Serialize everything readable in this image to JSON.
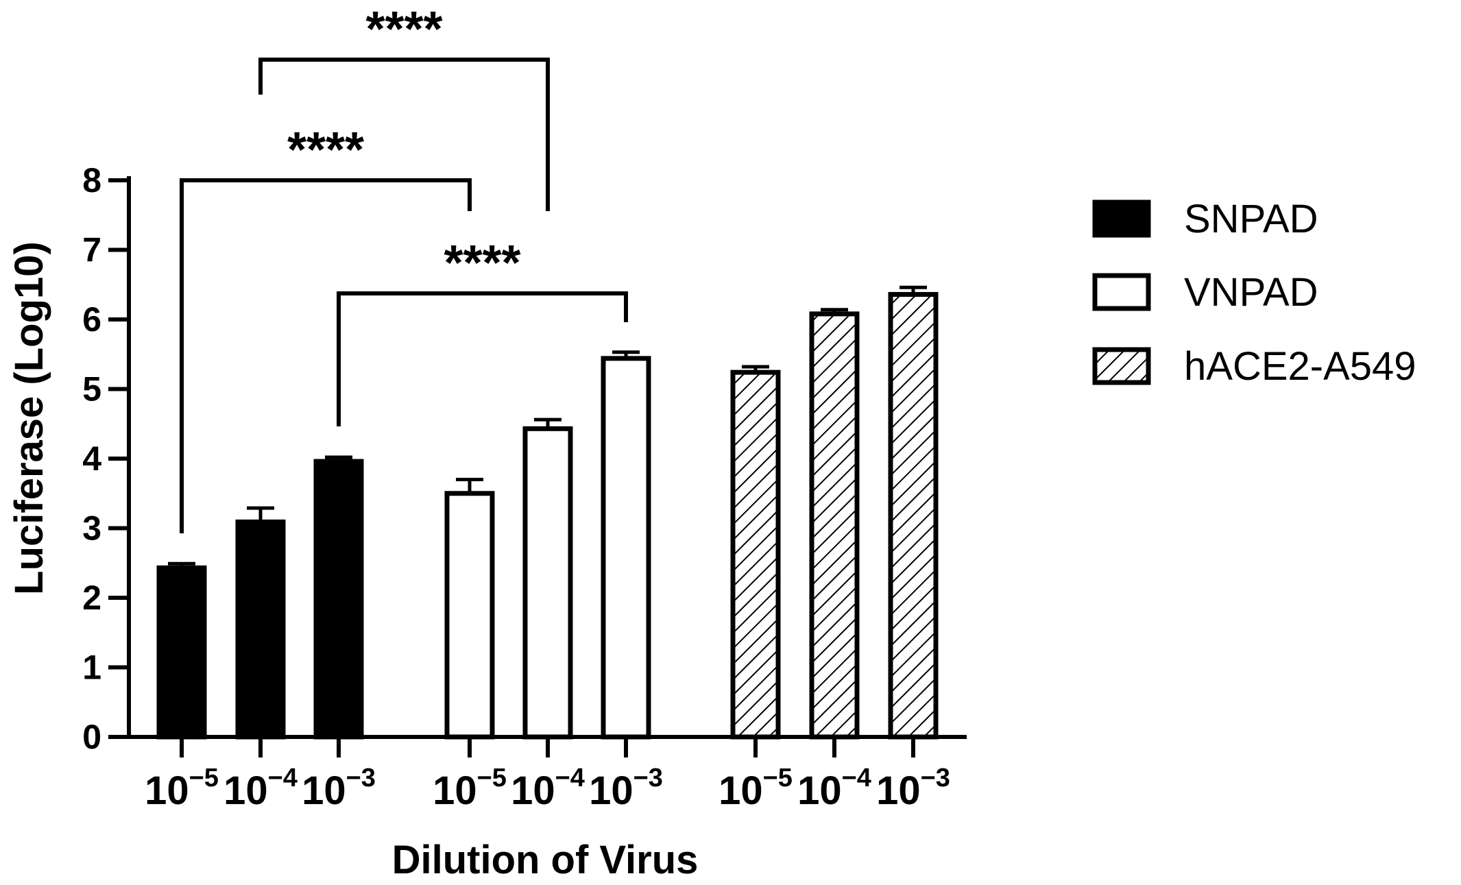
{
  "chart_data": {
    "type": "bar",
    "title": "",
    "xlabel": "Dilution of Virus",
    "ylabel": "Luciferase (Log10)",
    "ylim": [
      0,
      8
    ],
    "yticks": [
      "0",
      "1",
      "2",
      "3",
      "4",
      "5",
      "6",
      "7",
      "8"
    ],
    "grid": false,
    "legend_position": "right",
    "groups": [
      {
        "name": "SNPAD",
        "fill": "solid",
        "color": "#000000",
        "bars": [
          {
            "dilution_base": "10",
            "dilution_exp": "−5",
            "value": 2.43,
            "error": 0.06
          },
          {
            "dilution_base": "10",
            "dilution_exp": "−4",
            "value": 3.09,
            "error": 0.2
          },
          {
            "dilution_base": "10",
            "dilution_exp": "−3",
            "value": 3.96,
            "error": 0.06
          }
        ]
      },
      {
        "name": "VNPAD",
        "fill": "open",
        "color": "#000000",
        "bars": [
          {
            "dilution_base": "10",
            "dilution_exp": "−5",
            "value": 3.5,
            "error": 0.2
          },
          {
            "dilution_base": "10",
            "dilution_exp": "−4",
            "value": 4.43,
            "error": 0.13
          },
          {
            "dilution_base": "10",
            "dilution_exp": "−3",
            "value": 5.44,
            "error": 0.09
          }
        ]
      },
      {
        "name": "hACE2-A549",
        "fill": "hatched",
        "color": "#000000",
        "bars": [
          {
            "dilution_base": "10",
            "dilution_exp": "−5",
            "value": 5.24,
            "error": 0.08
          },
          {
            "dilution_base": "10",
            "dilution_exp": "−4",
            "value": 6.08,
            "error": 0.06
          },
          {
            "dilution_base": "10",
            "dilution_exp": "−3",
            "value": 6.36,
            "error": 0.1
          }
        ]
      }
    ],
    "significance": [
      {
        "from": [
          0,
          0
        ],
        "to": [
          1,
          0
        ],
        "label": "****"
      },
      {
        "from": [
          0,
          1
        ],
        "to": [
          1,
          1
        ],
        "label": "****"
      },
      {
        "from": [
          0,
          2
        ],
        "to": [
          1,
          2
        ],
        "label": "****"
      }
    ]
  }
}
